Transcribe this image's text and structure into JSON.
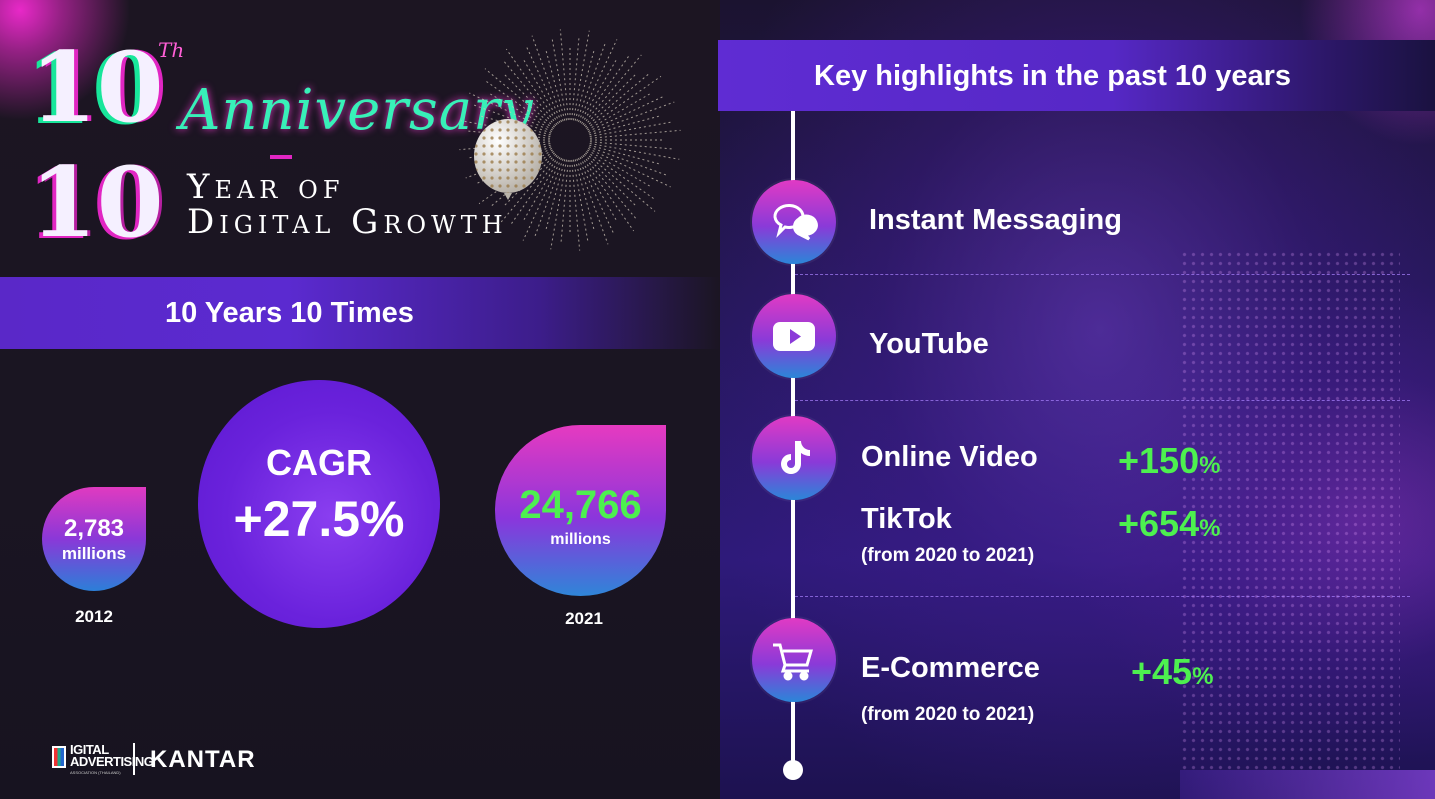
{
  "header": {
    "th": "Th",
    "ten_a": "10",
    "anniversary": "Anniversary",
    "ten_b": "10",
    "year_of": "Year of",
    "digital_growth": "Digital Growth"
  },
  "left_banner": {
    "title": "10 Years 10 Times"
  },
  "stats": {
    "start": {
      "value": "2,783",
      "unit": "millions",
      "year": "2012"
    },
    "cagr": {
      "label": "CAGR",
      "value": "+27.5%"
    },
    "end": {
      "value": "24,766",
      "unit": "millions",
      "year": "2021"
    }
  },
  "logos": {
    "daat_text": "DIGITAL\nADVERTISING",
    "daat_sub": "ASSOCIATION (THAILAND)",
    "kantar": "KANTAR"
  },
  "right_banner": {
    "title": "Key highlights in the past 10 years"
  },
  "highlights": [
    {
      "label": "Instant Messaging",
      "icon": "chat-bubbles-icon"
    },
    {
      "label": "YouTube",
      "icon": "youtube-play-icon"
    },
    {
      "label": "Online Video",
      "growth": "+150",
      "growth_unit": "%",
      "icon": "tiktok-icon",
      "sub_label": "TikTok",
      "sub_growth": "+654",
      "sub_growth_unit": "%",
      "note": "(from 2020 to 2021)"
    },
    {
      "label": "E-Commerce",
      "growth": "+45",
      "growth_unit": "%",
      "icon": "shopping-cart-icon",
      "note": "(from 2020 to 2021)"
    }
  ],
  "colors": {
    "accent_purple": "#5b2ad0",
    "growth_green": "#4df04f",
    "gradient_pink": "#e13ac4",
    "gradient_blue": "#2b86d8"
  }
}
